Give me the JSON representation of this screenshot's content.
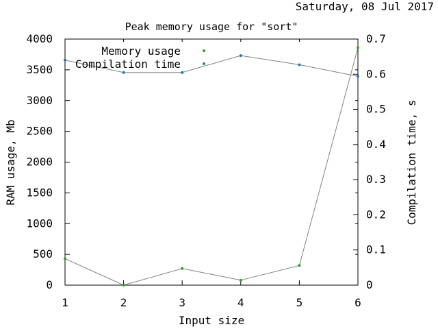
{
  "date_stamp": "Saturday, 08 Jul 2017",
  "chart_data": {
    "type": "line",
    "title": "Peak memory usage for \"sort\"",
    "xlabel": "Input size",
    "ylabel": "RAM usage, Mb",
    "y2label": "Compilation time, s",
    "x": [
      1,
      2,
      3,
      4,
      5,
      6
    ],
    "xlim": [
      1,
      6
    ],
    "ylim": [
      0,
      4000
    ],
    "y2lim": [
      0,
      0.7
    ],
    "xticks": [
      "1",
      "2",
      "3",
      "4",
      "5",
      "6"
    ],
    "yticks": [
      "0",
      "500",
      "1000",
      "1500",
      "2000",
      "2500",
      "3000",
      "3500",
      "4000"
    ],
    "y2ticks": [
      "0",
      "0.1",
      "0.2",
      "0.3",
      "0.4",
      "0.5",
      "0.6",
      "0.7"
    ],
    "grid": false,
    "legend_position": "top-left",
    "series": [
      {
        "name": "Memory usage",
        "axis": "left",
        "color": "#2ca02c",
        "values": [
          430,
          0,
          270,
          80,
          320,
          3860
        ]
      },
      {
        "name": "Compilation time",
        "axis": "right",
        "color": "#1f77b4",
        "values": [
          0.64,
          0.605,
          0.605,
          0.653,
          0.627,
          0.594
        ]
      }
    ]
  }
}
